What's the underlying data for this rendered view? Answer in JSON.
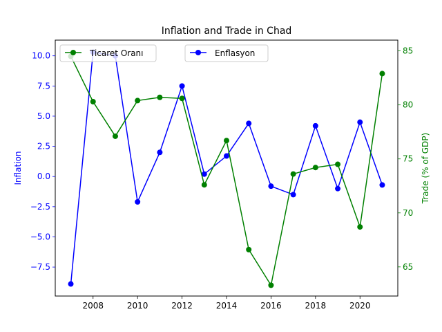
{
  "chart_data": {
    "type": "line",
    "title": "Inflation and Trade in Chad",
    "xlabel": "",
    "x": [
      2007,
      2008,
      2009,
      2010,
      2011,
      2012,
      2013,
      2014,
      2015,
      2016,
      2017,
      2018,
      2019,
      2020,
      2021
    ],
    "x_ticks": [
      2008,
      2010,
      2012,
      2014,
      2016,
      2018,
      2020
    ],
    "xlim": [
      2006.3,
      2021.7
    ],
    "left_axis": {
      "label": "Inflation",
      "color": "#0000ff",
      "ylim": [
        -9.9,
        11.3
      ],
      "ticks": [
        -7.5,
        -5.0,
        -2.5,
        0.0,
        2.5,
        5.0,
        7.5,
        10.0
      ],
      "tick_labels": [
        "−7.5",
        "−5.0",
        "−2.5",
        "0.0",
        "2.5",
        "5.0",
        "7.5",
        "10.0"
      ]
    },
    "right_axis": {
      "label": "Trade (% of GDP)",
      "color": "#008000",
      "ylim": [
        62.3,
        86.0
      ],
      "ticks": [
        65,
        70,
        75,
        80,
        85
      ],
      "tick_labels": [
        "65",
        "70",
        "75",
        "80",
        "85"
      ]
    },
    "series": [
      {
        "name": "Enflasyon",
        "axis": "left",
        "color": "#0000ff",
        "values": [
          -8.9,
          10.3,
          10.0,
          -2.1,
          2.0,
          7.5,
          0.2,
          1.7,
          4.4,
          -0.8,
          -1.5,
          4.2,
          -1.0,
          4.5,
          -0.7
        ]
      },
      {
        "name": "Ticaret Oranı",
        "axis": "right",
        "color": "#008000",
        "values": [
          84.5,
          80.3,
          77.1,
          80.4,
          80.7,
          80.6,
          72.6,
          76.7,
          66.6,
          63.3,
          73.6,
          74.2,
          74.5,
          68.7,
          82.9
        ]
      }
    ],
    "legends": [
      {
        "entries": [
          "Ticaret Oranı"
        ],
        "placement": "upper-left"
      },
      {
        "entries": [
          "Enflasyon"
        ],
        "placement": "upper-center"
      }
    ],
    "grid": false
  }
}
